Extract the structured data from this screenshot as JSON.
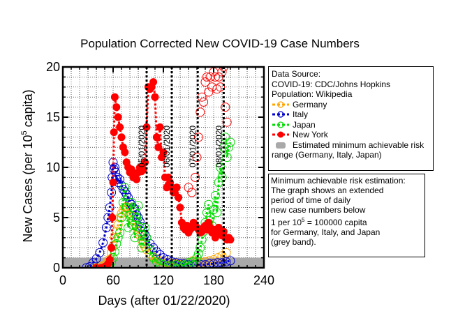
{
  "chart_data": {
    "type": "scatter",
    "title": "Population Corrected New COVID-19 Case Numbers",
    "xlabel": "Days (after 01/22/2020)",
    "ylabel": {
      "pre": "New Cases (per 10",
      "sup": "5",
      "post": " capita)"
    },
    "xlim": [
      0,
      240
    ],
    "ylim": [
      0,
      20
    ],
    "xticks": [
      0,
      60,
      120,
      180,
      240
    ],
    "yticks": [
      0,
      5,
      10,
      15,
      20
    ],
    "grid": "dotted",
    "risk_band": {
      "y0": 0,
      "y1": 1,
      "color": "#a9a9a9",
      "label": "Estimated minimum achievable risk range (Germany, Italy, Japan)"
    },
    "date_markers": [
      {
        "x": 100,
        "label": "05/01/2020"
      },
      {
        "x": 130,
        "label": "06/01/2020"
      },
      {
        "x": 161,
        "label": "07/01/2020"
      },
      {
        "x": 192,
        "label": "08/01/2020"
      }
    ],
    "series": [
      {
        "name": "Germany",
        "color": "#ffa500",
        "x": [
          40,
          44,
          48,
          52,
          55,
          58,
          60,
          62,
          64,
          66,
          68,
          70,
          72,
          74,
          76,
          78,
          80,
          82,
          84,
          86,
          88,
          90,
          92,
          94,
          96,
          98,
          100,
          104,
          108,
          112,
          116,
          120,
          125,
          130,
          135,
          140,
          145,
          150,
          155,
          160,
          165,
          170,
          175,
          180,
          185,
          190,
          195
        ],
        "y": [
          0,
          0.1,
          0.2,
          0.4,
          0.8,
          1.5,
          2.2,
          3,
          3.6,
          4.3,
          5,
          5.4,
          5.8,
          6,
          6.1,
          6,
          5.6,
          5.2,
          4.8,
          4.4,
          4,
          3.6,
          3.2,
          2.8,
          2.4,
          2.1,
          1.8,
          1.4,
          1.1,
          0.9,
          0.7,
          0.6,
          0.5,
          0.4,
          0.4,
          0.3,
          0.4,
          0.5,
          0.7,
          0.6,
          0.5,
          0.6,
          0.7,
          0.8,
          1,
          1.2,
          1.5
        ]
      },
      {
        "name": "Italy",
        "color": "#0000cd",
        "x": [
          28,
          32,
          36,
          40,
          44,
          48,
          52,
          54,
          56,
          58,
          59,
          60,
          61,
          62,
          63,
          64,
          65,
          66,
          68,
          70,
          72,
          74,
          76,
          78,
          80,
          82,
          84,
          86,
          88,
          90,
          92,
          94,
          96,
          98,
          100,
          104,
          108,
          112,
          116,
          120,
          125,
          130,
          135,
          140,
          145,
          150,
          155,
          160,
          165,
          170,
          175,
          180,
          185,
          190,
          195,
          200
        ],
        "y": [
          0,
          0.1,
          0.5,
          0.9,
          1.5,
          2.5,
          4,
          5,
          6,
          7.5,
          9,
          10.5,
          9.8,
          10,
          9.5,
          8.8,
          9,
          8.5,
          8.8,
          8.2,
          7.8,
          7.6,
          7.3,
          7,
          6.5,
          6.3,
          6,
          5.8,
          5.3,
          5,
          4.6,
          4.1,
          3.6,
          3.3,
          3,
          2.4,
          2,
          1.6,
          1.3,
          1,
          0.8,
          0.6,
          0.5,
          0.4,
          0.4,
          0.3,
          0.3,
          0.3,
          0.3,
          0.3,
          0.4,
          0.4,
          0.5,
          0.5,
          0.6,
          0.7
        ]
      },
      {
        "name": "Japan",
        "color": "#00dd00",
        "x": [
          50,
          54,
          58,
          60,
          62,
          64,
          66,
          68,
          70,
          72,
          74,
          76,
          78,
          80,
          82,
          84,
          86,
          88,
          90,
          92,
          94,
          96,
          98,
          100,
          104,
          108,
          112,
          116,
          120,
          125,
          130,
          135,
          140,
          145,
          150,
          155,
          160,
          162,
          164,
          166,
          168,
          170,
          172,
          174,
          176,
          178,
          180,
          182,
          184,
          186,
          188,
          190,
          192,
          194,
          196,
          198,
          200
        ],
        "y": [
          0,
          0.2,
          0.6,
          1,
          1.6,
          2.4,
          3,
          3.5,
          5,
          6.5,
          8,
          6,
          4,
          5.2,
          6.5,
          4.2,
          3,
          5,
          6.2,
          4,
          2,
          2.6,
          4,
          3,
          1.8,
          1,
          0.6,
          0.4,
          0.3,
          0.2,
          0.2,
          0.3,
          0.2,
          0.3,
          0.5,
          0.6,
          1,
          1.4,
          2,
          2.8,
          3.6,
          4.5,
          5.5,
          6.3,
          5,
          4.2,
          5.8,
          7.2,
          5.5,
          8.5,
          10,
          9,
          12,
          13,
          11,
          12,
          12.5
        ]
      },
      {
        "name": "New York",
        "color": "#ff0000",
        "x": [
          40,
          46,
          50,
          52,
          54,
          56,
          58,
          59,
          60,
          61,
          62,
          64,
          66,
          68,
          70,
          72,
          74,
          76,
          78,
          80,
          82,
          84,
          86,
          88,
          90,
          92,
          94,
          96,
          98,
          100,
          102,
          104,
          106,
          108,
          110,
          112,
          114,
          116,
          118,
          120,
          122,
          124,
          126,
          128,
          130,
          132,
          134,
          136,
          138,
          140,
          142,
          144,
          146,
          148,
          150,
          152,
          154,
          156,
          158,
          160,
          162,
          164,
          166,
          168,
          170,
          172,
          174,
          176,
          178,
          180,
          182,
          184,
          186,
          188,
          190,
          192,
          194,
          196,
          198,
          200
        ],
        "y": [
          0,
          0,
          0.1,
          0.2,
          0.4,
          0.8,
          2,
          5,
          8.5,
          13.5,
          17,
          16,
          15,
          14,
          13,
          12,
          11.5,
          10.5,
          10,
          9.5,
          9.8,
          9,
          9.2,
          8.8,
          9.5,
          10,
          9.6,
          9.8,
          10.5,
          14,
          18,
          17.8,
          18,
          18.5,
          17,
          13,
          12,
          14,
          11,
          11.5,
          9,
          8,
          9,
          8.5,
          8,
          7.5,
          7.8,
          8,
          7,
          6,
          4.5,
          4,
          3.8,
          4.2,
          3.5,
          3.8,
          4,
          4.5,
          4.2,
          4,
          3.8,
          3.5,
          3.6,
          4,
          4.2,
          3.8,
          4.5,
          4,
          3.5,
          3.8,
          3,
          3.6,
          4,
          3.5,
          3.2,
          3.6,
          3,
          2.8,
          3,
          2.8
        ]
      }
    ],
    "ny_open_markers": {
      "x": [
        150,
        154,
        158,
        160,
        162,
        164,
        166,
        168,
        170,
        172,
        174,
        176,
        178,
        180,
        182,
        184,
        186,
        188,
        190,
        192,
        194,
        196
      ],
      "y": [
        8,
        7.5,
        9,
        11,
        13,
        15.5,
        17,
        16.5,
        18.5,
        19,
        17.5,
        19,
        18,
        19.5,
        19,
        17.8,
        19,
        18,
        19.5,
        20,
        16,
        14.5
      ]
    }
  },
  "legend": {
    "source_lines": [
      "Data Source:",
      "COVID-19: CDC/Johns Hopkins",
      "Population: Wikipedia"
    ],
    "entries": [
      "Germany",
      "Italy",
      "Japan",
      "New York"
    ],
    "band_label_1": "Estimated minimum achievable risk",
    "band_label_2": "range (Germany, Italy, Japan)"
  },
  "info": {
    "line1": "Minimum achievable risk estimation:",
    "line2": "The graph shows an extended",
    "line3": "period of time of daily",
    "line4": "new case numbers below",
    "line5_pre": "1 per 10",
    "line5_sup": "5",
    "line5_post": " = 100000 capita",
    "line6": "for Germany, Italy, and Japan",
    "line7": "(grey band)."
  }
}
